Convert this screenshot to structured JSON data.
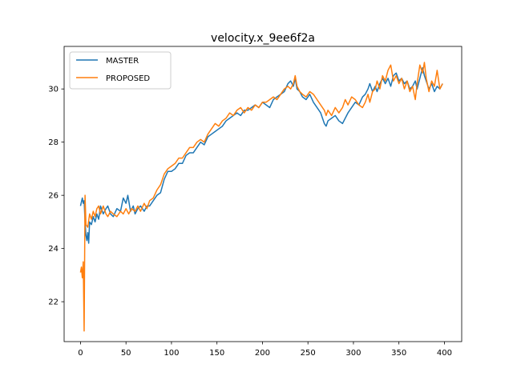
{
  "chart_data": {
    "type": "line",
    "title": "velocity.x_9ee6f2a",
    "xlabel": "",
    "ylabel": "",
    "xlim": [
      -18,
      419
    ],
    "ylim": [
      20.5,
      31.6
    ],
    "xticks": [
      0,
      50,
      100,
      150,
      200,
      250,
      300,
      350,
      400
    ],
    "yticks": [
      22,
      24,
      26,
      28,
      30
    ],
    "grid": false,
    "legend": "top-left",
    "series": [
      {
        "name": "MASTER",
        "color": "#1f77b4",
        "points": [
          [
            0,
            25.6
          ],
          [
            2,
            25.9
          ],
          [
            3,
            25.7
          ],
          [
            4,
            25.8
          ],
          [
            5,
            25.0
          ],
          [
            6,
            24.5
          ],
          [
            7,
            24.3
          ],
          [
            8,
            24.6
          ],
          [
            9,
            24.2
          ],
          [
            10,
            25.0
          ],
          [
            12,
            24.9
          ],
          [
            14,
            25.2
          ],
          [
            16,
            25.0
          ],
          [
            18,
            25.3
          ],
          [
            20,
            25.1
          ],
          [
            22,
            25.6
          ],
          [
            25,
            25.3
          ],
          [
            28,
            25.5
          ],
          [
            30,
            25.6
          ],
          [
            33,
            25.3
          ],
          [
            36,
            25.2
          ],
          [
            40,
            25.5
          ],
          [
            44,
            25.4
          ],
          [
            47,
            25.9
          ],
          [
            50,
            25.7
          ],
          [
            52,
            26.0
          ],
          [
            55,
            25.4
          ],
          [
            58,
            25.6
          ],
          [
            60,
            25.3
          ],
          [
            63,
            25.5
          ],
          [
            66,
            25.6
          ],
          [
            70,
            25.4
          ],
          [
            73,
            25.6
          ],
          [
            76,
            25.6
          ],
          [
            80,
            25.8
          ],
          [
            84,
            26.0
          ],
          [
            88,
            26.1
          ],
          [
            92,
            26.6
          ],
          [
            96,
            26.9
          ],
          [
            100,
            26.9
          ],
          [
            104,
            27.0
          ],
          [
            108,
            27.2
          ],
          [
            112,
            27.2
          ],
          [
            116,
            27.5
          ],
          [
            120,
            27.6
          ],
          [
            124,
            27.6
          ],
          [
            128,
            27.8
          ],
          [
            132,
            28.0
          ],
          [
            136,
            27.9
          ],
          [
            140,
            28.2
          ],
          [
            144,
            28.3
          ],
          [
            148,
            28.4
          ],
          [
            152,
            28.5
          ],
          [
            156,
            28.6
          ],
          [
            160,
            28.8
          ],
          [
            164,
            28.9
          ],
          [
            168,
            29.0
          ],
          [
            172,
            29.1
          ],
          [
            176,
            29.0
          ],
          [
            180,
            29.2
          ],
          [
            184,
            29.2
          ],
          [
            188,
            29.3
          ],
          [
            192,
            29.4
          ],
          [
            196,
            29.3
          ],
          [
            200,
            29.5
          ],
          [
            204,
            29.4
          ],
          [
            208,
            29.3
          ],
          [
            212,
            29.6
          ],
          [
            216,
            29.7
          ],
          [
            220,
            29.8
          ],
          [
            224,
            29.9
          ],
          [
            228,
            30.2
          ],
          [
            231,
            30.3
          ],
          [
            234,
            30.1
          ],
          [
            236,
            30.4
          ],
          [
            238,
            30.0
          ],
          [
            241,
            29.9
          ],
          [
            244,
            29.7
          ],
          [
            248,
            29.6
          ],
          [
            252,
            29.8
          ],
          [
            256,
            29.5
          ],
          [
            260,
            29.3
          ],
          [
            264,
            29.1
          ],
          [
            268,
            28.7
          ],
          [
            270,
            28.6
          ],
          [
            272,
            28.8
          ],
          [
            276,
            28.9
          ],
          [
            280,
            29.0
          ],
          [
            284,
            28.8
          ],
          [
            288,
            28.7
          ],
          [
            291,
            28.9
          ],
          [
            294,
            29.1
          ],
          [
            298,
            29.3
          ],
          [
            302,
            29.5
          ],
          [
            306,
            29.4
          ],
          [
            310,
            29.7
          ],
          [
            313,
            29.8
          ],
          [
            316,
            30.0
          ],
          [
            318,
            30.2
          ],
          [
            321,
            29.9
          ],
          [
            324,
            30.1
          ],
          [
            326,
            29.9
          ],
          [
            329,
            30.2
          ],
          [
            332,
            30.4
          ],
          [
            335,
            30.2
          ],
          [
            338,
            30.4
          ],
          [
            341,
            30.1
          ],
          [
            344,
            30.5
          ],
          [
            347,
            30.6
          ],
          [
            350,
            30.3
          ],
          [
            353,
            30.4
          ],
          [
            356,
            30.2
          ],
          [
            359,
            30.3
          ],
          [
            362,
            30.0
          ],
          [
            365,
            30.1
          ],
          [
            368,
            30.3
          ],
          [
            370,
            30.0
          ],
          [
            373,
            30.4
          ],
          [
            376,
            30.8
          ],
          [
            378,
            30.5
          ],
          [
            380,
            30.3
          ],
          [
            383,
            30.0
          ],
          [
            386,
            30.2
          ],
          [
            389,
            29.9
          ],
          [
            392,
            30.1
          ],
          [
            395,
            30.0
          ],
          [
            398,
            30.2
          ]
        ]
      },
      {
        "name": "PROPOSED",
        "color": "#ff7f0e",
        "points": [
          [
            0,
            23.1
          ],
          [
            1,
            23.3
          ],
          [
            2,
            22.9
          ],
          [
            3,
            23.5
          ],
          [
            4,
            20.9
          ],
          [
            5,
            26.0
          ],
          [
            6,
            24.9
          ],
          [
            8,
            24.8
          ],
          [
            10,
            25.3
          ],
          [
            12,
            25.1
          ],
          [
            14,
            25.4
          ],
          [
            16,
            25.2
          ],
          [
            18,
            25.5
          ],
          [
            20,
            25.6
          ],
          [
            22,
            25.3
          ],
          [
            25,
            25.6
          ],
          [
            28,
            25.3
          ],
          [
            30,
            25.2
          ],
          [
            33,
            25.4
          ],
          [
            36,
            25.3
          ],
          [
            40,
            25.2
          ],
          [
            44,
            25.4
          ],
          [
            47,
            25.3
          ],
          [
            50,
            25.5
          ],
          [
            53,
            25.3
          ],
          [
            56,
            25.5
          ],
          [
            60,
            25.4
          ],
          [
            63,
            25.6
          ],
          [
            66,
            25.4
          ],
          [
            70,
            25.7
          ],
          [
            73,
            25.5
          ],
          [
            76,
            25.8
          ],
          [
            80,
            25.9
          ],
          [
            84,
            26.2
          ],
          [
            88,
            26.4
          ],
          [
            92,
            26.8
          ],
          [
            96,
            27.0
          ],
          [
            100,
            27.1
          ],
          [
            104,
            27.2
          ],
          [
            108,
            27.4
          ],
          [
            112,
            27.4
          ],
          [
            116,
            27.6
          ],
          [
            120,
            27.8
          ],
          [
            124,
            27.8
          ],
          [
            128,
            28.0
          ],
          [
            132,
            28.1
          ],
          [
            136,
            28.0
          ],
          [
            140,
            28.3
          ],
          [
            144,
            28.5
          ],
          [
            148,
            28.7
          ],
          [
            152,
            28.6
          ],
          [
            156,
            28.8
          ],
          [
            160,
            28.9
          ],
          [
            164,
            29.1
          ],
          [
            168,
            29.0
          ],
          [
            172,
            29.2
          ],
          [
            176,
            29.3
          ],
          [
            180,
            29.1
          ],
          [
            184,
            29.3
          ],
          [
            188,
            29.2
          ],
          [
            192,
            29.4
          ],
          [
            196,
            29.3
          ],
          [
            200,
            29.5
          ],
          [
            204,
            29.5
          ],
          [
            208,
            29.6
          ],
          [
            212,
            29.7
          ],
          [
            216,
            29.6
          ],
          [
            220,
            29.8
          ],
          [
            224,
            30.0
          ],
          [
            228,
            30.1
          ],
          [
            231,
            30.0
          ],
          [
            234,
            30.2
          ],
          [
            236,
            30.5
          ],
          [
            238,
            30.1
          ],
          [
            241,
            29.9
          ],
          [
            244,
            29.8
          ],
          [
            248,
            29.7
          ],
          [
            252,
            29.9
          ],
          [
            256,
            29.8
          ],
          [
            260,
            29.6
          ],
          [
            264,
            29.4
          ],
          [
            268,
            29.2
          ],
          [
            270,
            29.0
          ],
          [
            272,
            29.2
          ],
          [
            276,
            29.0
          ],
          [
            280,
            29.3
          ],
          [
            284,
            29.1
          ],
          [
            288,
            29.3
          ],
          [
            291,
            29.6
          ],
          [
            294,
            29.4
          ],
          [
            298,
            29.7
          ],
          [
            302,
            29.6
          ],
          [
            306,
            29.4
          ],
          [
            310,
            29.3
          ],
          [
            313,
            29.5
          ],
          [
            316,
            29.8
          ],
          [
            318,
            29.5
          ],
          [
            321,
            29.9
          ],
          [
            324,
            30.0
          ],
          [
            326,
            30.3
          ],
          [
            329,
            30.0
          ],
          [
            332,
            30.5
          ],
          [
            335,
            30.3
          ],
          [
            338,
            30.7
          ],
          [
            341,
            30.9
          ],
          [
            344,
            30.3
          ],
          [
            347,
            30.5
          ],
          [
            350,
            30.2
          ],
          [
            353,
            30.4
          ],
          [
            356,
            30.0
          ],
          [
            359,
            30.3
          ],
          [
            362,
            29.9
          ],
          [
            365,
            30.1
          ],
          [
            368,
            29.6
          ],
          [
            370,
            30.2
          ],
          [
            373,
            30.9
          ],
          [
            376,
            30.6
          ],
          [
            378,
            31.0
          ],
          [
            380,
            30.4
          ],
          [
            383,
            29.9
          ],
          [
            386,
            30.3
          ],
          [
            389,
            30.1
          ],
          [
            392,
            30.7
          ],
          [
            395,
            30.0
          ],
          [
            398,
            30.2
          ]
        ]
      }
    ]
  }
}
